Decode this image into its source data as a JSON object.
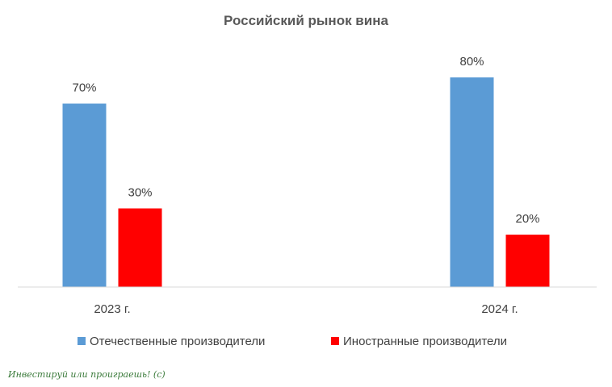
{
  "chart_data": {
    "type": "bar",
    "title": "Российский рынок вина",
    "categories": [
      "2023 г.",
      "2024 г."
    ],
    "series": [
      {
        "name": "Отечественные производители",
        "values": [
          70,
          80
        ],
        "labels": [
          "70%",
          "80%"
        ],
        "color": "#5b9bd5"
      },
      {
        "name": "Иностранные производители",
        "values": [
          30,
          20
        ],
        "labels": [
          "30%",
          "20%"
        ],
        "color": "#ff0000"
      }
    ],
    "ylim": [
      0,
      100
    ],
    "grid": false,
    "legend_position": "bottom",
    "xlabel": "",
    "ylabel": ""
  },
  "watermark": "Инвестируй или проиграешь! (с)"
}
